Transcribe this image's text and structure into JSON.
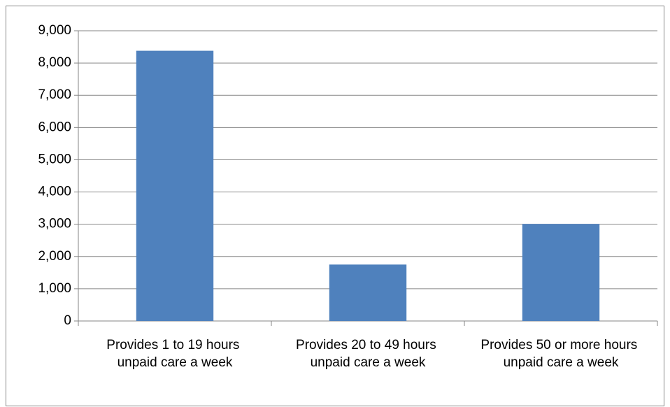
{
  "chart_data": {
    "type": "bar",
    "categories": [
      "Provides 1 to 19 hours unpaid care a week",
      "Provides 20 to 49 hours unpaid care a week",
      "Provides 50 or more hours unpaid care a week"
    ],
    "values": [
      8380,
      1750,
      3010
    ],
    "color": "#4f81bd",
    "ylim": [
      0,
      9000
    ],
    "yticks": [
      0,
      {
        "value": 1000,
        "label": "1,000"
      },
      {
        "value": 2000,
        "label": "2,000"
      },
      {
        "value": 3000,
        "label": "3,000"
      },
      {
        "value": 4000,
        "label": "4,000"
      },
      {
        "value": 5000,
        "label": "5,000"
      },
      {
        "value": 6000,
        "label": "6,000"
      },
      {
        "value": 7000,
        "label": "7,000"
      },
      {
        "value": 8000,
        "label": "8,000"
      },
      {
        "value": 9000,
        "label": "9,000"
      }
    ],
    "grid": true
  }
}
